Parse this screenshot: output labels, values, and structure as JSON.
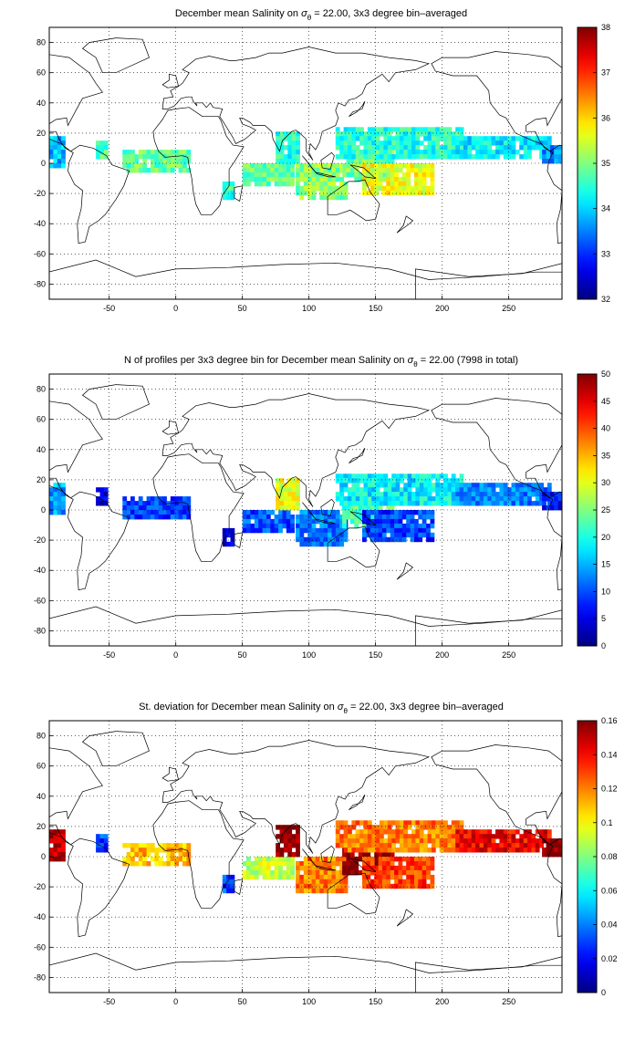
{
  "charts": [
    {
      "id": "salinity",
      "title_pre": "December mean Salinity on ",
      "title_sigma": "σ",
      "title_sub": "θ",
      "title_post": " = 22.00, 3x3 degree bin–averaged",
      "colorbar_ticks": [
        "32",
        "33",
        "34",
        "35",
        "36",
        "37",
        "38"
      ]
    },
    {
      "id": "profiles",
      "title_pre": "N of profiles per 3x3 degree bin for December mean Salinity on ",
      "title_sigma": "σ",
      "title_sub": "θ",
      "title_post": " = 22.00 (7998 in total)",
      "colorbar_ticks": [
        "0",
        "5",
        "10",
        "15",
        "20",
        "25",
        "30",
        "35",
        "40",
        "45",
        "50"
      ]
    },
    {
      "id": "stdev",
      "title_pre": "St. deviation for December mean Salinity on ",
      "title_sigma": "σ",
      "title_sub": "θ",
      "title_post": " = 22.00, 3x3 degree bin–averaged",
      "colorbar_ticks": [
        "0",
        "0.02",
        "0.04",
        "0.06",
        "0.08",
        "0.1",
        "0.12",
        "0.14",
        "0.16"
      ]
    }
  ],
  "xticks": [
    "-50",
    "0",
    "50",
    "100",
    "150",
    "200",
    "250"
  ],
  "yticks": [
    "80",
    "60",
    "40",
    "20",
    "0",
    "-20",
    "-40",
    "-60",
    "-80"
  ],
  "colormap": "jet",
  "chart_data": [
    {
      "type": "heatmap",
      "title": "December mean Salinity on σθ = 22.00, 3x3 degree bin–averaged",
      "xlim": [
        -95,
        290
      ],
      "ylim": [
        -90,
        90
      ],
      "xticks": [
        -50,
        0,
        50,
        100,
        150,
        200,
        250
      ],
      "yticks": [
        -80,
        -60,
        -40,
        -20,
        0,
        20,
        40,
        60,
        80
      ],
      "grid": true,
      "colorbar": {
        "min": 32,
        "max": 38,
        "ticks": [
          32,
          33,
          34,
          35,
          36,
          37,
          38
        ]
      },
      "regions": [
        {
          "x": [
            -95,
            -82
          ],
          "y": [
            -3,
            18
          ],
          "value": 33.8
        },
        {
          "x": [
            -60,
            -50
          ],
          "y": [
            3,
            15
          ],
          "value": 34.6
        },
        {
          "x": [
            -40,
            12
          ],
          "y": [
            -6,
            9
          ],
          "value": 34.8
        },
        {
          "x": [
            35,
            45
          ],
          "y": [
            -24,
            -12
          ],
          "value": 34.5
        },
        {
          "x": [
            50,
            90
          ],
          "y": [
            -15,
            0
          ],
          "value": 34.8
        },
        {
          "x": [
            75,
            93
          ],
          "y": [
            0,
            21
          ],
          "value": 34.4
        },
        {
          "x": [
            90,
            130
          ],
          "y": [
            -24,
            0
          ],
          "value": 35.0
        },
        {
          "x": [
            125,
            165
          ],
          "y": [
            -12,
            9
          ],
          "value": 34.9
        },
        {
          "x": [
            140,
            195
          ],
          "y": [
            -21,
            0
          ],
          "value": 35.6
        },
        {
          "x": [
            120,
            215
          ],
          "y": [
            3,
            24
          ],
          "value": 34.4
        },
        {
          "x": [
            210,
            282
          ],
          "y": [
            3,
            18
          ],
          "value": 34.1
        },
        {
          "x": [
            275,
            290
          ],
          "y": [
            0,
            12
          ],
          "value": 33.5
        }
      ]
    },
    {
      "type": "heatmap",
      "title": "N of profiles per 3x3 degree bin for December mean Salinity on σθ = 22.00 (7998 in total)",
      "xlim": [
        -95,
        290
      ],
      "ylim": [
        -90,
        90
      ],
      "xticks": [
        -50,
        0,
        50,
        100,
        150,
        200,
        250
      ],
      "yticks": [
        -80,
        -60,
        -40,
        -20,
        0,
        20,
        40,
        60,
        80
      ],
      "grid": true,
      "total_profiles": 7998,
      "colorbar": {
        "min": 0,
        "max": 50,
        "ticks": [
          0,
          5,
          10,
          15,
          20,
          25,
          30,
          35,
          40,
          45,
          50
        ]
      },
      "regions": [
        {
          "x": [
            -95,
            -82
          ],
          "y": [
            -3,
            18
          ],
          "value": 14
        },
        {
          "x": [
            -60,
            -50
          ],
          "y": [
            3,
            15
          ],
          "value": 4
        },
        {
          "x": [
            -40,
            12
          ],
          "y": [
            -6,
            9
          ],
          "value": 9
        },
        {
          "x": [
            35,
            45
          ],
          "y": [
            -24,
            -12
          ],
          "value": 4
        },
        {
          "x": [
            50,
            90
          ],
          "y": [
            -15,
            0
          ],
          "value": 10
        },
        {
          "x": [
            75,
            93
          ],
          "y": [
            0,
            21
          ],
          "value": 30
        },
        {
          "x": [
            90,
            130
          ],
          "y": [
            -24,
            0
          ],
          "value": 12
        },
        {
          "x": [
            125,
            165
          ],
          "y": [
            -12,
            9
          ],
          "value": 22
        },
        {
          "x": [
            140,
            195
          ],
          "y": [
            -21,
            0
          ],
          "value": 9
        },
        {
          "x": [
            120,
            215
          ],
          "y": [
            3,
            24
          ],
          "value": 18
        },
        {
          "x": [
            210,
            282
          ],
          "y": [
            3,
            18
          ],
          "value": 12
        },
        {
          "x": [
            275,
            290
          ],
          "y": [
            0,
            12
          ],
          "value": 6
        }
      ]
    },
    {
      "type": "heatmap",
      "title": "St. deviation for December mean Salinity on σθ = 22.00, 3x3 degree bin–averaged",
      "xlim": [
        -95,
        290
      ],
      "ylim": [
        -90,
        90
      ],
      "xticks": [
        -50,
        0,
        50,
        100,
        150,
        200,
        250
      ],
      "yticks": [
        -80,
        -60,
        -40,
        -20,
        0,
        20,
        40,
        60,
        80
      ],
      "grid": true,
      "colorbar": {
        "min": 0,
        "max": 0.16,
        "ticks": [
          0,
          0.02,
          0.04,
          0.06,
          0.08,
          0.1,
          0.12,
          0.14,
          0.16
        ]
      },
      "regions": [
        {
          "x": [
            -95,
            -82
          ],
          "y": [
            -3,
            18
          ],
          "value": 0.15
        },
        {
          "x": [
            -60,
            -50
          ],
          "y": [
            3,
            15
          ],
          "value": 0.03
        },
        {
          "x": [
            -40,
            12
          ],
          "y": [
            -6,
            9
          ],
          "value": 0.11
        },
        {
          "x": [
            35,
            45
          ],
          "y": [
            -24,
            -12
          ],
          "value": 0.03
        },
        {
          "x": [
            50,
            90
          ],
          "y": [
            -15,
            0
          ],
          "value": 0.09
        },
        {
          "x": [
            75,
            93
          ],
          "y": [
            0,
            21
          ],
          "value": 0.16
        },
        {
          "x": [
            90,
            130
          ],
          "y": [
            -24,
            0
          ],
          "value": 0.12
        },
        {
          "x": [
            125,
            165
          ],
          "y": [
            -12,
            9
          ],
          "value": 0.16
        },
        {
          "x": [
            140,
            195
          ],
          "y": [
            -21,
            0
          ],
          "value": 0.13
        },
        {
          "x": [
            120,
            215
          ],
          "y": [
            3,
            24
          ],
          "value": 0.12
        },
        {
          "x": [
            210,
            282
          ],
          "y": [
            3,
            18
          ],
          "value": 0.14
        },
        {
          "x": [
            275,
            290
          ],
          "y": [
            0,
            12
          ],
          "value": 0.16
        }
      ]
    }
  ]
}
